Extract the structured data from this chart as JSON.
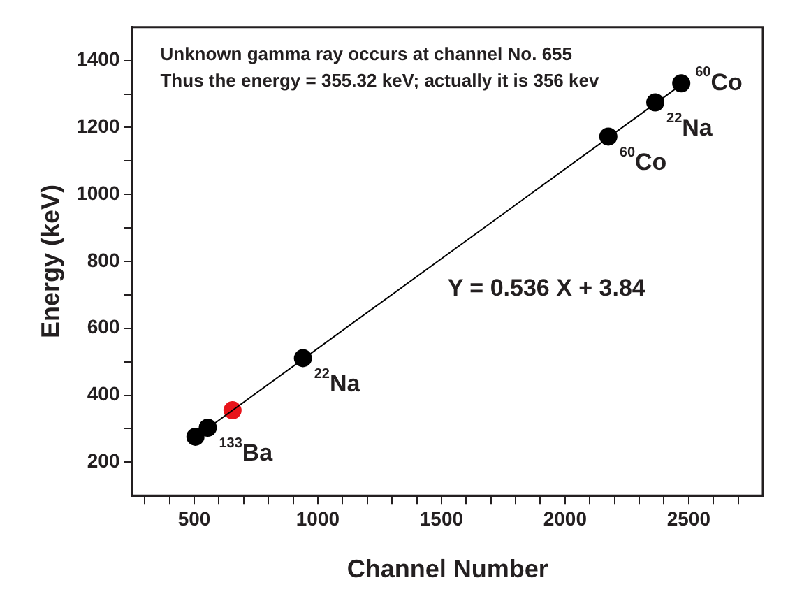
{
  "chart_data": {
    "type": "scatter",
    "xlabel": "Channel Number",
    "ylabel": "Energy (keV)",
    "xlim": [
      250,
      2800
    ],
    "ylim": [
      100,
      1500
    ],
    "xticks": [
      {
        "value": 300,
        "label": null
      },
      {
        "value": 400,
        "label": null
      },
      500,
      {
        "value": 600,
        "label": null
      },
      {
        "value": 700,
        "label": null
      },
      {
        "value": 800,
        "label": null
      },
      {
        "value": 900,
        "label": null
      },
      1000,
      {
        "value": 1100,
        "label": null
      },
      {
        "value": 1200,
        "label": null
      },
      {
        "value": 1300,
        "label": null
      },
      {
        "value": 1400,
        "label": null
      },
      1500,
      {
        "value": 1600,
        "label": null
      },
      {
        "value": 1700,
        "label": null
      },
      {
        "value": 1800,
        "label": null
      },
      {
        "value": 1900,
        "label": null
      },
      2000,
      {
        "value": 2100,
        "label": null
      },
      {
        "value": 2200,
        "label": null
      },
      {
        "value": 2300,
        "label": null
      },
      {
        "value": 2400,
        "label": null
      },
      2500,
      {
        "value": 2600,
        "label": null
      },
      {
        "value": 2700,
        "label": null
      }
    ],
    "yticks": [
      200,
      {
        "value": 300,
        "label": null
      },
      400,
      {
        "value": 500,
        "label": null
      },
      600,
      {
        "value": 700,
        "label": null
      },
      800,
      {
        "value": 900,
        "label": null
      },
      1000,
      {
        "value": 1100,
        "label": null
      },
      1200,
      {
        "value": 1300,
        "label": null
      },
      1400
    ],
    "grid": false,
    "legend": false,
    "marker": "circle",
    "series": [
      {
        "type": "line",
        "color": "#000000",
        "x": [
          560,
          2470
        ],
        "values": [
          304,
          1328
        ],
        "marker": "none"
      },
      {
        "color": "#000000",
        "x": [
          505,
          555,
          940,
          2175,
          2365,
          2470
        ],
        "values": [
          276,
          303,
          511,
          1173,
          1275,
          1332
        ]
      },
      {
        "color": "#e8141b",
        "x": [
          655
        ],
        "values": [
          355
        ]
      }
    ],
    "annotations": [
      "Unknown gamma ray occurs at channel No. 655",
      "Thus the energy = 355.32 keV; actually it is 356 kev",
      {
        "text": "Y = 0.536 X + 3.84",
        "x": 1480,
        "y": 797
      },
      {
        "text": "$^{133}$Ba",
        "x": 555,
        "y": 303
      },
      {
        "text": "$^{22}$Na",
        "x": 940,
        "y": 511
      },
      {
        "text": "$^{60}$Co",
        "x": 2175,
        "y": 1173
      },
      {
        "text": "$^{22}$Na",
        "x": 2365,
        "y": 1275
      },
      {
        "text": "$^{60}$Co",
        "x": 2470,
        "y": 1332
      }
    ]
  }
}
